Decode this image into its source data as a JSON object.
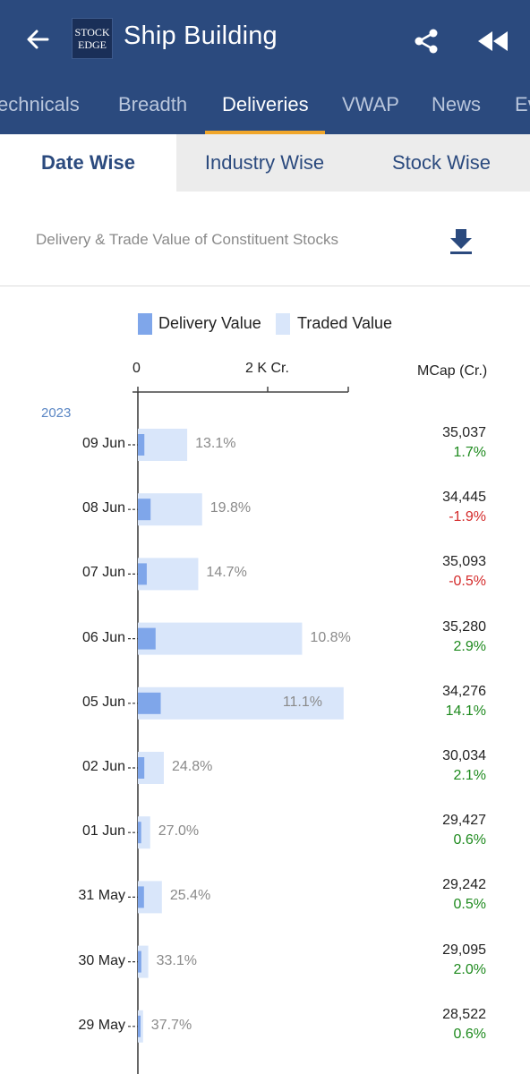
{
  "header": {
    "title": "Ship Building",
    "logo_line1": "STOCK",
    "logo_line2": "EDGE",
    "colors": {
      "bar": "#2b4a7e",
      "accent": "#f0a62a"
    }
  },
  "tabs": [
    {
      "label": "Technicals",
      "active": false
    },
    {
      "label": "Breadth",
      "active": false
    },
    {
      "label": "Deliveries",
      "active": true
    },
    {
      "label": "VWAP",
      "active": false
    },
    {
      "label": "News",
      "active": false
    },
    {
      "label": "Ev",
      "active": false
    }
  ],
  "subtabs": [
    {
      "label": "Date Wise",
      "active": true
    },
    {
      "label": "Industry Wise",
      "active": false
    },
    {
      "label": "Stock Wise",
      "active": false
    }
  ],
  "section": {
    "title": "Delivery & Trade Value of Constituent Stocks"
  },
  "chart_data": {
    "type": "bar",
    "orientation": "horizontal",
    "legend": [
      "Delivery Value",
      "Traded Value"
    ],
    "colors": {
      "delivery": "#7fa6ea",
      "traded": "#d9e6fa",
      "pos": "#1e8a1e",
      "neg": "#d42a2a"
    },
    "x_ticks": [
      "0",
      "2 K Cr."
    ],
    "xlim_cr": [
      0,
      3200
    ],
    "mcap_header": "MCap (Cr.)",
    "year": "2023",
    "rows": [
      {
        "date": "09 Jun",
        "traded_cr": 760,
        "delivery_cr": 100,
        "delivery_pct": "13.1%",
        "mcap": "35,037",
        "mcap_change": "1.7%",
        "positive": true
      },
      {
        "date": "08 Jun",
        "traded_cr": 990,
        "delivery_cr": 196,
        "delivery_pct": "19.8%",
        "mcap": "34,445",
        "mcap_change": "-1.9%",
        "positive": false
      },
      {
        "date": "07 Jun",
        "traded_cr": 930,
        "delivery_cr": 137,
        "delivery_pct": "14.7%",
        "mcap": "35,093",
        "mcap_change": "-0.5%",
        "positive": false
      },
      {
        "date": "06 Jun",
        "traded_cr": 2530,
        "delivery_cr": 273,
        "delivery_pct": "10.8%",
        "mcap": "35,280",
        "mcap_change": "2.9%",
        "positive": true
      },
      {
        "date": "05 Jun",
        "traded_cr": 3170,
        "delivery_cr": 352,
        "delivery_pct": "11.1%",
        "mcap": "34,276",
        "mcap_change": "14.1%",
        "positive": true
      },
      {
        "date": "02 Jun",
        "traded_cr": 400,
        "delivery_cr": 99,
        "delivery_pct": "24.8%",
        "mcap": "30,034",
        "mcap_change": "2.1%",
        "positive": true
      },
      {
        "date": "01 Jun",
        "traded_cr": 190,
        "delivery_cr": 51,
        "delivery_pct": "27.0%",
        "mcap": "29,427",
        "mcap_change": "0.6%",
        "positive": true
      },
      {
        "date": "31 May",
        "traded_cr": 370,
        "delivery_cr": 94,
        "delivery_pct": "25.4%",
        "mcap": "29,242",
        "mcap_change": "0.5%",
        "positive": true
      },
      {
        "date": "30 May",
        "traded_cr": 160,
        "delivery_cr": 53,
        "delivery_pct": "33.1%",
        "mcap": "29,095",
        "mcap_change": "2.0%",
        "positive": true
      },
      {
        "date": "29 May",
        "traded_cr": 80,
        "delivery_cr": 30,
        "delivery_pct": "37.7%",
        "mcap": "28,522",
        "mcap_change": "0.6%",
        "positive": true
      }
    ]
  }
}
